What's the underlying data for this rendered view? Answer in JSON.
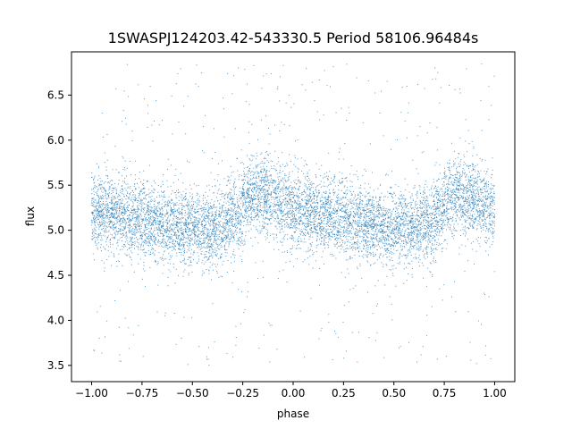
{
  "chart_data": {
    "type": "scatter",
    "title": "1SWASPJ124203.42-543330.5 Period 58106.96484s",
    "xlabel": "phase",
    "ylabel": "flux",
    "xlim": [
      -1.1,
      1.1
    ],
    "ylim": [
      3.32,
      6.98
    ],
    "x_ticks": [
      -1.0,
      -0.75,
      -0.5,
      -0.25,
      0.0,
      0.25,
      0.5,
      0.75,
      1.0
    ],
    "x_tick_labels": [
      "−1.00",
      "−0.75",
      "−0.50",
      "−0.25",
      "0.00",
      "0.25",
      "0.50",
      "0.75",
      "1.00"
    ],
    "y_ticks": [
      3.5,
      4.0,
      4.5,
      5.0,
      5.5,
      6.0,
      6.5
    ],
    "y_tick_labels": [
      "3.5",
      "4.0",
      "4.5",
      "5.0",
      "5.5",
      "6.0",
      "6.5"
    ],
    "grid": false,
    "marker_color": "#1f77b4",
    "series": [
      {
        "phase_range": [
          -1.0,
          1.0
        ],
        "trend_x": [
          -1.0,
          -0.9,
          -0.8,
          -0.7,
          -0.6,
          -0.5,
          -0.4,
          -0.3,
          -0.2,
          -0.1,
          0.0,
          0.1,
          0.2,
          0.3,
          0.4,
          0.5,
          0.6,
          0.7,
          0.8,
          0.9,
          1.0
        ],
        "trend_y": [
          5.22,
          5.2,
          5.15,
          5.1,
          5.05,
          5.02,
          5.0,
          5.12,
          5.42,
          5.35,
          5.22,
          5.2,
          5.15,
          5.1,
          5.05,
          5.02,
          5.0,
          5.12,
          5.42,
          5.35,
          5.22
        ],
        "spread": 0.25
      }
    ]
  }
}
